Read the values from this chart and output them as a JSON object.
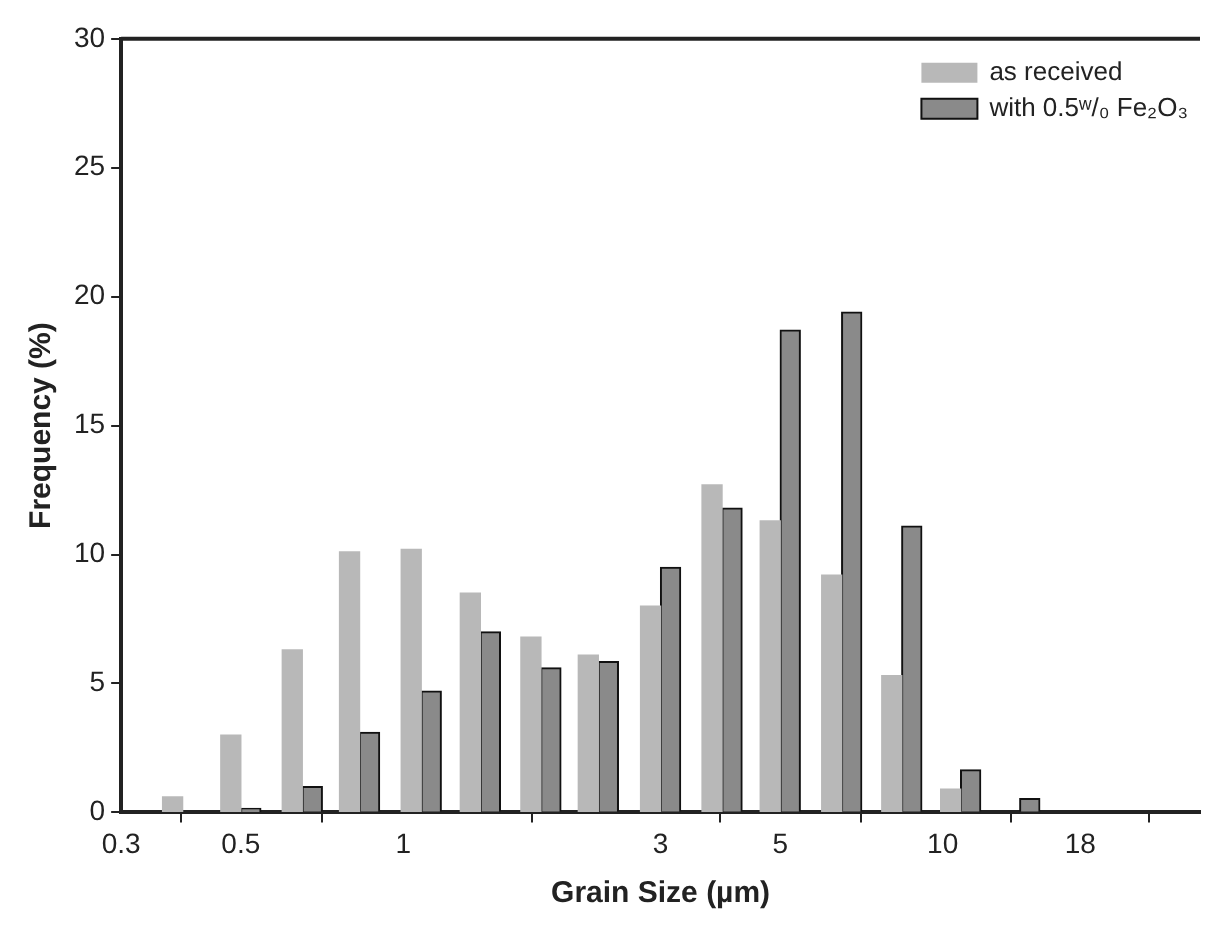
{
  "chart_data": {
    "type": "bar",
    "xlabel": "Grain Size (µm)",
    "ylabel": "Frequency (%)",
    "x": [
      0.39,
      0.5,
      0.65,
      0.83,
      1.08,
      1.39,
      1.8,
      2.3,
      3.0,
      3.9,
      5.0,
      6.5,
      8.4,
      10.8,
      13.9
    ],
    "series": [
      {
        "name": "as received",
        "color": "#b8b8b8",
        "values": [
          0.6,
          3.0,
          6.3,
          10.1,
          10.2,
          8.5,
          6.8,
          6.1,
          8.0,
          12.7,
          11.3,
          9.2,
          5.3,
          0.9,
          null
        ]
      },
      {
        "name": "with 0.5ʷ/₀ Fe₂O₃",
        "color": "#8a8a8a",
        "values": [
          null,
          0.15,
          1.0,
          3.1,
          4.7,
          7.0,
          5.6,
          5.85,
          9.5,
          11.8,
          18.7,
          19.4,
          11.1,
          1.65,
          0.53
        ]
      }
    ],
    "log": "x",
    "xlim": [
      0.3,
      30
    ],
    "xticks": [
      0.3,
      0.5,
      1,
      3,
      5,
      10,
      18
    ],
    "ylim": [
      0,
      30
    ],
    "yticks": [
      0,
      5,
      10,
      15,
      20,
      25,
      30
    ],
    "grid": false,
    "legend": "top right"
  }
}
